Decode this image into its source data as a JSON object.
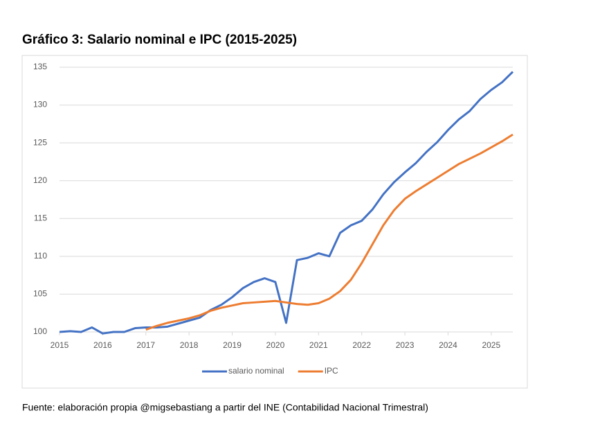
{
  "chart_data": {
    "type": "line",
    "title": "Gráfico 3: Salario nominal e IPC (2015-2025)",
    "source": "Fuente: elaboración propia @migsebastiang a partir del INE (Contabilidad Nacional Trimestral)",
    "x": [
      2015,
      2015.25,
      2015.5,
      2015.75,
      2016,
      2016.25,
      2016.5,
      2016.75,
      2017,
      2017.25,
      2017.5,
      2017.75,
      2018,
      2018.25,
      2018.5,
      2018.75,
      2019,
      2019.25,
      2019.5,
      2019.75,
      2020,
      2020.25,
      2020.5,
      2020.75,
      2021,
      2021.25,
      2021.5,
      2021.75,
      2022,
      2022.25,
      2022.5,
      2022.75,
      2023,
      2023.25,
      2023.5,
      2023.75,
      2024,
      2024.25,
      2024.5,
      2024.75,
      2025,
      2025.25,
      2025.5
    ],
    "series": [
      {
        "name": "salario nominal",
        "color": "#4472c4",
        "values": [
          100,
          100.1,
          100,
          100.6,
          99.8,
          100,
          100,
          100.5,
          100.6,
          100.6,
          100.7,
          101.1,
          101.5,
          101.9,
          102.9,
          103.6,
          104.6,
          105.8,
          106.6,
          107.1,
          106.6,
          101.2,
          109.5,
          109.8,
          110.4,
          110,
          113.1,
          114.1,
          114.7,
          116.2,
          118.2,
          119.8,
          121.1,
          122.3,
          123.8,
          125.1,
          126.7,
          128.1,
          129.2,
          130.8,
          132,
          133,
          134.4
        ]
      },
      {
        "name": "IPC",
        "color": "#ed7d31",
        "values": [
          null,
          null,
          null,
          null,
          null,
          null,
          null,
          null,
          100.3,
          100.8,
          101.2,
          101.5,
          101.8,
          102.2,
          102.8,
          103.2,
          103.5,
          103.8,
          103.9,
          104,
          104.1,
          103.9,
          103.7,
          103.6,
          103.8,
          104.4,
          105.4,
          106.9,
          109.1,
          111.6,
          114.1,
          116.1,
          117.6,
          118.6,
          119.5,
          120.4,
          121.3,
          122.2,
          122.9,
          123.6,
          124.4,
          125.2,
          126.1
        ]
      }
    ],
    "xlim": [
      2015,
      2025.5
    ],
    "xticks": [
      2015,
      2016,
      2017,
      2018,
      2019,
      2020,
      2021,
      2022,
      2023,
      2024,
      2025
    ],
    "ylim": [
      100,
      135
    ],
    "yticks": [
      100,
      105,
      110,
      115,
      120,
      125,
      130,
      135
    ],
    "grid": true
  }
}
